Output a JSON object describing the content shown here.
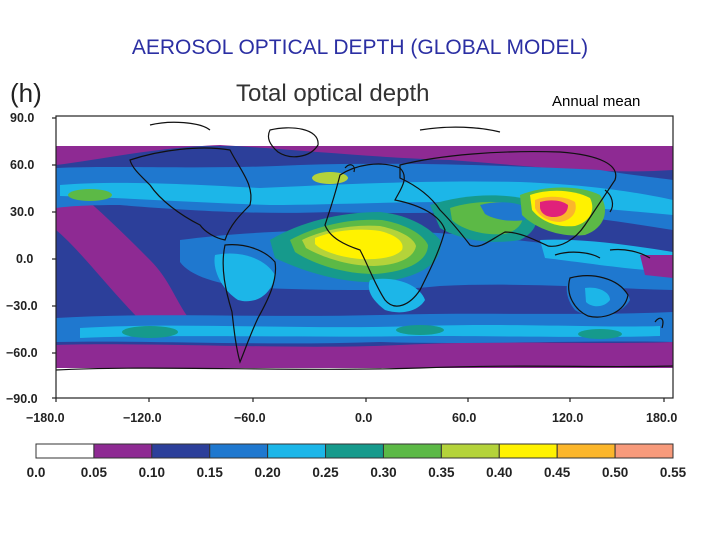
{
  "slide": {
    "title": "AEROSOL OPTICAL DEPTH (GLOBAL MODEL)"
  },
  "map": {
    "panel_label": "(h)",
    "title": "Total optical depth",
    "annotation": "Annual mean",
    "x_ticks": [
      "−180.0",
      "−120.0",
      "−60.0",
      "0.0",
      "60.0",
      "120.0",
      "180.0"
    ],
    "y_ticks": [
      "90.0",
      "60.0",
      "30.0",
      "0.0",
      "−30.0",
      "−60.0",
      "−90.0"
    ]
  },
  "colorbar": {
    "ticks": [
      "0.0",
      "0.05",
      "0.10",
      "0.15",
      "0.20",
      "0.25",
      "0.30",
      "0.35",
      "0.40",
      "0.45",
      "0.50",
      "0.55"
    ],
    "colors": [
      "#ffffff",
      "#8e2a93",
      "#2c3f9a",
      "#1f78cf",
      "#1cb6e8",
      "#169a8c",
      "#5cb946",
      "#b4d33a",
      "#fff200",
      "#fbb62b",
      "#f79a7b"
    ]
  }
}
